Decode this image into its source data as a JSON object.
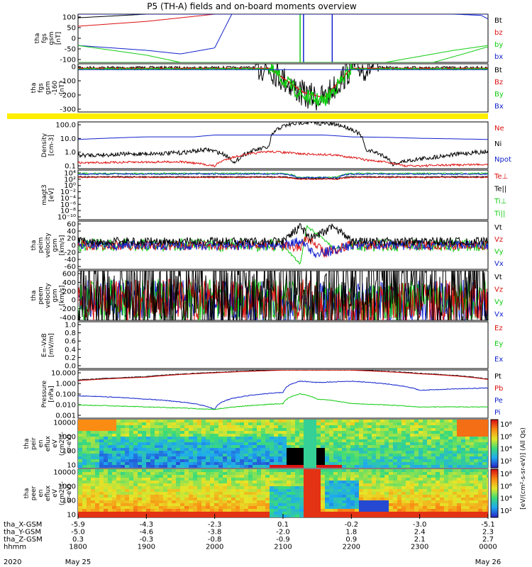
{
  "title": "P5 (TH-A) fields and on-board moments overview",
  "colors": {
    "black": "#000000",
    "red": "#dd1111",
    "green": "#11cc11",
    "blue": "#1122cc",
    "yellow": "#ffee00"
  },
  "panels": [
    {
      "ylabel": [
        "tha",
        "fgs",
        "gsm",
        "[nT]"
      ],
      "ticks": [
        "100",
        "50",
        "0",
        "-50",
        "-100"
      ],
      "legend": [
        {
          "t": "Bt",
          "c": "black"
        },
        {
          "t": "bz",
          "c": "red"
        },
        {
          "t": "by",
          "c": "green"
        },
        {
          "t": "bx",
          "c": "blue"
        }
      ]
    },
    {
      "ylabel": [
        "tha",
        "fgs",
        "gsm",
        "-160",
        "[nT]"
      ],
      "ticks": [
        "0",
        "-100",
        "-200",
        "-300"
      ],
      "legend": [
        {
          "t": "Bt",
          "c": "black"
        },
        {
          "t": "Bz",
          "c": "red"
        },
        {
          "t": "By",
          "c": "green"
        },
        {
          "t": "Bx",
          "c": "blue"
        }
      ]
    },
    {
      "ylabel": [
        "Density",
        "[cm-3]"
      ],
      "ticks": [
        "100.0",
        "10.0",
        "1.0",
        "0.1"
      ],
      "legend": [
        {
          "t": "Ne",
          "c": "red"
        },
        {
          "t": "Ni",
          "c": "black"
        },
        {
          "t": "Npot",
          "c": "blue"
        }
      ]
    },
    {
      "ylabel": [
        "magt3",
        "[eV]"
      ],
      "ticks": [
        "10⁴",
        "10²",
        "10⁰",
        "10⁻²",
        "10⁻⁴",
        "10⁻⁶",
        "10⁻⁸",
        "10⁻¹⁰"
      ],
      "legend": [
        {
          "t": "Te⊥",
          "c": "red"
        },
        {
          "t": "Te||",
          "c": "black"
        },
        {
          "t": "Ti⊥",
          "c": "green"
        },
        {
          "t": "Ti||",
          "c": "green"
        }
      ]
    },
    {
      "ylabel": [
        "tha",
        "peim",
        "velocity",
        "gsm",
        "[km/s]"
      ],
      "ticks": [
        "60",
        "40",
        "20",
        "0",
        "-20",
        "-40",
        "-60"
      ],
      "legend": [
        {
          "t": "Vt",
          "c": "black"
        },
        {
          "t": "Vz",
          "c": "red"
        },
        {
          "t": "Vy",
          "c": "green"
        },
        {
          "t": "Vx",
          "c": "blue"
        }
      ]
    },
    {
      "ylabel": [
        "tha",
        "peem",
        "velocity",
        "gsm",
        "[km/s]"
      ],
      "ticks": [
        "600",
        "400",
        "200",
        "0",
        "-200",
        "-400"
      ],
      "legend": [
        {
          "t": "Vt",
          "c": "black"
        },
        {
          "t": "Vz",
          "c": "red"
        },
        {
          "t": "Vy",
          "c": "green"
        },
        {
          "t": "Vx",
          "c": "blue"
        }
      ]
    },
    {
      "ylabel": [
        "E=-VxB",
        "[mV/m]"
      ],
      "ticks": [
        "1.0",
        "0.8",
        "0.6",
        "0.4",
        "0.2",
        "0.0"
      ],
      "legend": [
        {
          "t": "Ez",
          "c": "red"
        },
        {
          "t": "Ey",
          "c": "green"
        },
        {
          "t": "Ex",
          "c": "blue"
        }
      ]
    },
    {
      "ylabel": [
        "Pressure",
        "[nPa]"
      ],
      "ticks": [
        "10.000",
        "1.000",
        "0.100",
        "0.010",
        "0.001"
      ],
      "legend": [
        {
          "t": "Pt",
          "c": "black"
        },
        {
          "t": "Pb",
          "c": "red"
        },
        {
          "t": "Pe",
          "c": "blue"
        },
        {
          "t": "Pi",
          "c": "blue"
        }
      ]
    },
    {
      "ylabel": [
        "tha",
        "peir",
        "en",
        "eflux",
        "eV",
        "(cm2-s-",
        "sr-eV)"
      ],
      "ticks": [
        "10000",
        "1000",
        "100",
        "10"
      ],
      "legend": []
    },
    {
      "ylabel": [
        "tha",
        "peer",
        "en",
        "eflux",
        "eV",
        "(cm2-s-",
        "sr-eV)"
      ],
      "ticks": [
        "10000",
        "1000",
        "100",
        "10"
      ],
      "legend": []
    }
  ],
  "colorbar": {
    "label": "[eV/(cm²-s-sr-eV)] (All Qs)",
    "top_ticks": [
      "10⁸",
      "10⁶",
      "10⁴",
      "10²"
    ],
    "bottom_ticks": [
      "10⁸",
      "10⁶",
      "10⁴",
      "10²"
    ]
  },
  "xaxis": {
    "rows": [
      {
        "label": "tha_X-GSM",
        "vals": [
          "-5.9",
          "-4.3",
          "-2.3",
          "0.1",
          "-0.2",
          "-3.0",
          "-5.1"
        ]
      },
      {
        "label": "tha_Y-GSM",
        "vals": [
          "-5.0",
          "-4.6",
          "-3.8",
          "-2.0",
          "1.8",
          "2.4",
          "2.3"
        ]
      },
      {
        "label": "tha_Z-GSM",
        "vals": [
          "0.3",
          "-0.3",
          "-0.8",
          "-0.9",
          "0.9",
          "2.1",
          "2.7"
        ]
      },
      {
        "label": "hhmm",
        "vals": [
          "1800",
          "1900",
          "2000",
          "2100",
          "2200",
          "2300",
          "0000"
        ]
      }
    ],
    "year": "2020",
    "date_start": "May 25",
    "date_end": "May 26"
  },
  "chart_data": {
    "type": "line",
    "title": "P5 (TH-A) fields and on-board moments overview",
    "x_range": [
      "2020-05-25 18:00",
      "2020-05-26 00:00"
    ],
    "x_ticks": [
      "1800",
      "1900",
      "2000",
      "2100",
      "2200",
      "2300",
      "0000"
    ],
    "series": [
      {
        "name": "Bt",
        "panel": 1,
        "x": [
          1800,
          1900,
          2000,
          2030,
          2130,
          2230,
          2400
        ],
        "values": [
          85,
          100,
          100,
          100,
          100,
          100,
          100
        ]
      },
      {
        "name": "bz",
        "panel": 1,
        "x": [
          1800,
          1900,
          1930,
          2000,
          2030
        ],
        "values": [
          50,
          70,
          85,
          100,
          100
        ]
      },
      {
        "name": "bx",
        "panel": 1,
        "x": [
          1800,
          1900,
          1930,
          2000,
          2015
        ],
        "values": [
          -30,
          -50,
          -65,
          -40,
          100
        ]
      },
      {
        "name": "by",
        "panel": 1,
        "x": [
          1800,
          1900,
          1930,
          2000,
          2230,
          2330,
          2400
        ],
        "values": [
          -30,
          -70,
          -100,
          -100,
          -100,
          -50,
          -30
        ]
      },
      {
        "name": "Ni",
        "panel": 3,
        "x": [
          1800,
          1900,
          1930,
          2000,
          2030,
          2100,
          2130,
          2200,
          2230,
          2300,
          2400
        ],
        "values": [
          0.8,
          1.2,
          1.0,
          0.3,
          2.0,
          60,
          100,
          50,
          0.5,
          0.3,
          1.5
        ]
      },
      {
        "name": "Npot",
        "panel": 3,
        "x": [
          1800,
          1900,
          2000,
          2130,
          2200,
          2400
        ],
        "values": [
          12,
          20,
          20,
          20,
          15,
          10
        ]
      },
      {
        "name": "Pt",
        "panel": 8,
        "x": [
          1800,
          1900,
          2000,
          2100,
          2200,
          2300,
          2400
        ],
        "values": [
          2.5,
          5,
          12,
          20,
          20,
          10,
          3
        ]
      },
      {
        "name": "Pi",
        "panel": 8,
        "x": [
          1800,
          1900,
          2000,
          2100,
          2115,
          2130,
          2200,
          2300,
          2400
        ],
        "values": [
          0.1,
          0.05,
          0.006,
          0.2,
          2,
          1.5,
          2,
          0.3,
          0.5
        ]
      },
      {
        "name": "Pe",
        "panel": 8,
        "x": [
          1800,
          1900,
          2000,
          2100,
          2115,
          2130,
          2200,
          2300,
          2400
        ],
        "values": [
          0.015,
          0.01,
          0.006,
          0.02,
          0.15,
          0.05,
          0.02,
          0.01,
          0.01
        ]
      }
    ]
  }
}
